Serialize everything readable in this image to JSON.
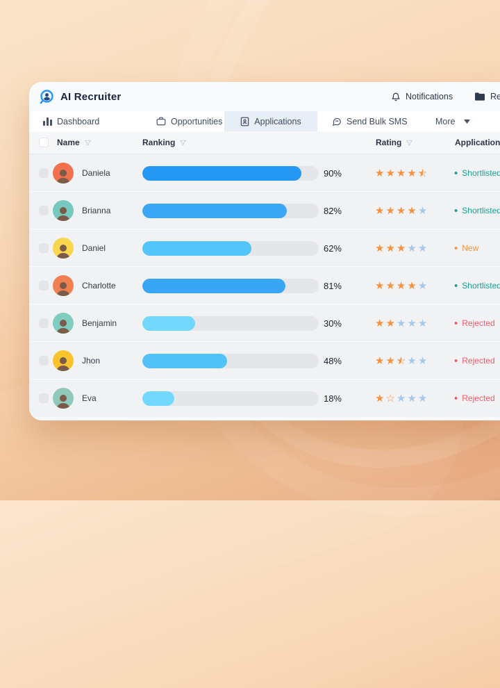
{
  "header": {
    "app_title": "AI Recruiter",
    "notifications_label": "Notifications",
    "reports_label": "Reports"
  },
  "tabs": [
    {
      "label": "Dashboard",
      "icon": "bar-chart-icon",
      "active": false
    },
    {
      "label": "Opportunities",
      "icon": "briefcase-icon",
      "active": false
    },
    {
      "label": "Applications",
      "icon": "id-card-icon",
      "active": true
    },
    {
      "label": "Send Bulk SMS",
      "icon": "chat-bubble-icon",
      "active": false
    },
    {
      "label": "More",
      "icon": "caret-down-icon",
      "active": false
    }
  ],
  "table": {
    "columns": {
      "name": "Name",
      "ranking": "Ranking",
      "rating": "Rating",
      "applications": "Applications"
    },
    "rows": [
      {
        "name": "Daniela",
        "ranking_pct": "90%",
        "ranking_value": 90,
        "bar_color": "#2498F3",
        "avatar_color": "#F0714B",
        "rating": 4.5,
        "stars": [
          "full",
          "full",
          "full",
          "full",
          "half"
        ],
        "status": "Shortlisted",
        "status_color": "#16A08F"
      },
      {
        "name": "Brianna",
        "ranking_pct": "82%",
        "ranking_value": 82,
        "bar_color": "#39A7F5",
        "avatar_color": "#76C9BE",
        "rating": 4,
        "stars": [
          "full",
          "full",
          "full",
          "full",
          "empty"
        ],
        "status": "Shortlisted",
        "status_color": "#16A08F"
      },
      {
        "name": "Daniel",
        "ranking_pct": "62%",
        "ranking_value": 62,
        "bar_color": "#53C5F8",
        "avatar_color": "#F8D64E",
        "rating": 3,
        "stars": [
          "full",
          "full",
          "full",
          "empty",
          "empty"
        ],
        "status": "New",
        "status_color": "#F6913E"
      },
      {
        "name": "Charlotte",
        "ranking_pct": "81%",
        "ranking_value": 81,
        "bar_color": "#38A5F5",
        "avatar_color": "#F08050",
        "rating": 4,
        "stars": [
          "full",
          "full",
          "full",
          "full",
          "empty"
        ],
        "status": "Shortlisted",
        "status_color": "#16A08F"
      },
      {
        "name": "Benjamin",
        "ranking_pct": "30%",
        "ranking_value": 30,
        "bar_color": "#72D7FD",
        "avatar_color": "#7FCCC0",
        "rating": 2,
        "stars": [
          "full",
          "full",
          "empty",
          "empty",
          "empty"
        ],
        "status": "Rejected",
        "status_color": "#EE5A68"
      },
      {
        "name": "Jhon",
        "ranking_pct": "48%",
        "ranking_value": 48,
        "bar_color": "#50C2F7",
        "avatar_color": "#F9C42B",
        "rating": 2.5,
        "stars": [
          "full",
          "full",
          "half",
          "empty",
          "empty"
        ],
        "status": "Rejected",
        "status_color": "#EE5A68"
      },
      {
        "name": "Eva",
        "ranking_pct": "18%",
        "ranking_value": 18,
        "bar_color": "#73D8FD",
        "avatar_color": "#8EC9BB",
        "rating": 1.5,
        "stars": [
          "full",
          "outline",
          "empty",
          "empty",
          "empty"
        ],
        "status": "Rejected",
        "status_color": "#EE5A68"
      }
    ]
  },
  "colors": {
    "star_full": "#F6913E",
    "star_empty": "#A6C9E8",
    "bar_track": "#E4E6E9",
    "accent_blue": "#2498F3",
    "active_tab_bg": "#E7EEF6"
  }
}
